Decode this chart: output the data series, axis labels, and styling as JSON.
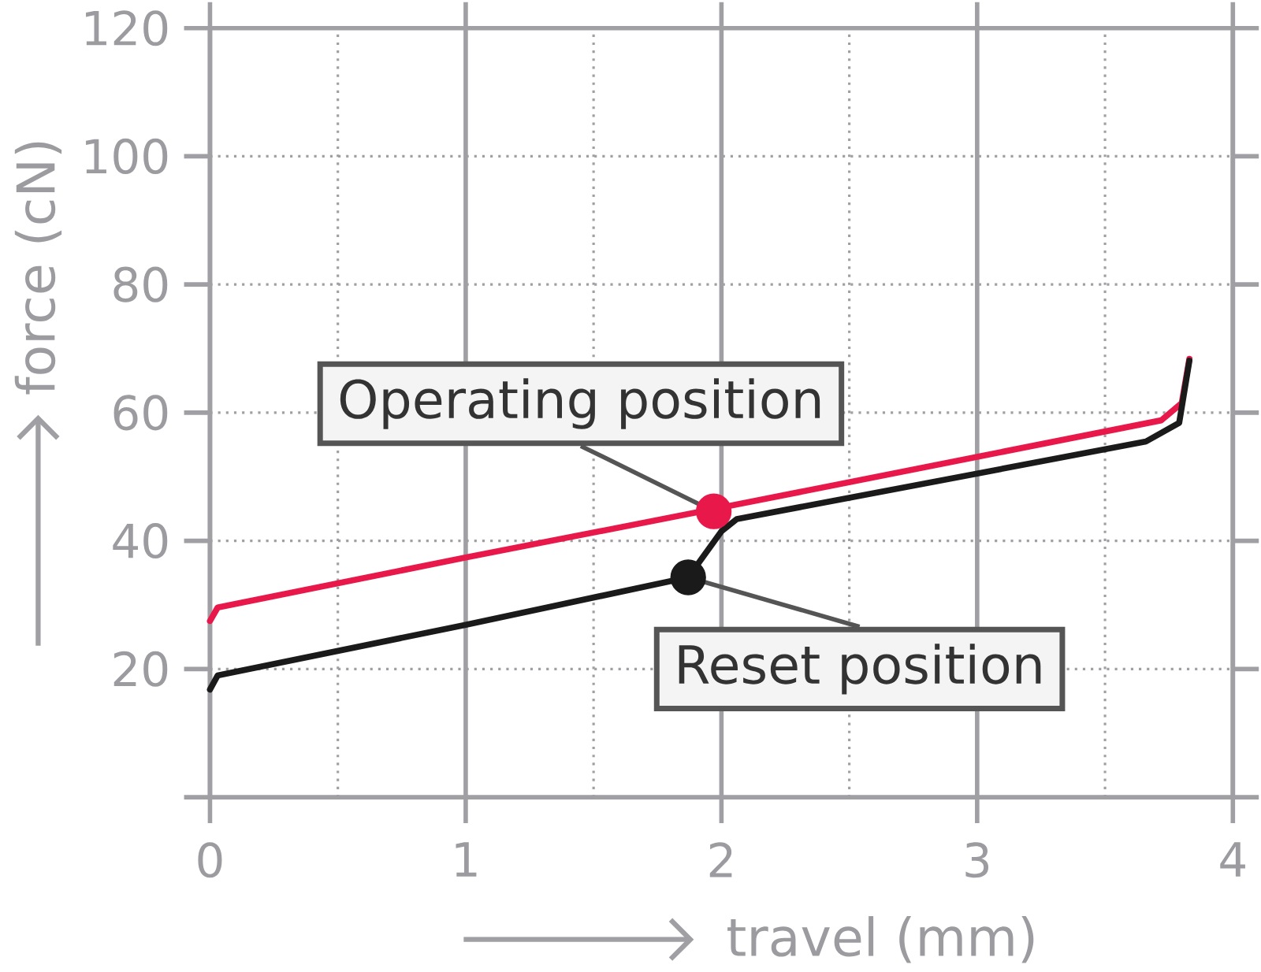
{
  "chart_data": {
    "type": "line",
    "xlabel": "travel (mm)",
    "ylabel": "force (cN)",
    "xlim": [
      0,
      4
    ],
    "ylim": [
      0,
      120
    ],
    "xticks": [
      0,
      1,
      2,
      3,
      4
    ],
    "yticks": [
      {
        "value": 0,
        "label": null
      },
      20,
      40,
      60,
      80,
      100,
      120
    ],
    "grid": true,
    "series": [
      {
        "color": "#e8194a",
        "x": [
          0,
          0.03,
          1.0,
          2.0,
          3.0,
          3.72,
          3.8,
          3.83
        ],
        "values": [
          27.5,
          29.6,
          37.4,
          45.2,
          53.1,
          58.8,
          61.5,
          68.4
        ]
      },
      {
        "color": "#1a1a1a",
        "x": [
          0,
          0.03,
          1.0,
          1.87,
          2.0,
          2.06,
          3.0,
          3.66,
          3.79,
          3.83
        ],
        "values": [
          16.8,
          19.0,
          26.9,
          34.3,
          41.5,
          43.4,
          50.5,
          55.5,
          58.4,
          68.1
        ]
      },
      {
        "type": "scatter",
        "color": "#e8194a",
        "marker": "circle",
        "x": [
          1.97
        ],
        "values": [
          44.6
        ]
      },
      {
        "type": "scatter",
        "color": "#1a1a1a",
        "marker": "circle",
        "x": [
          1.87
        ],
        "values": [
          34.3
        ]
      }
    ],
    "annotations": [
      {
        "text": "Operating position",
        "x": 1.97,
        "y": 44.6
      },
      {
        "text": "Reset position",
        "x": 1.87,
        "y": 34.3
      }
    ]
  }
}
